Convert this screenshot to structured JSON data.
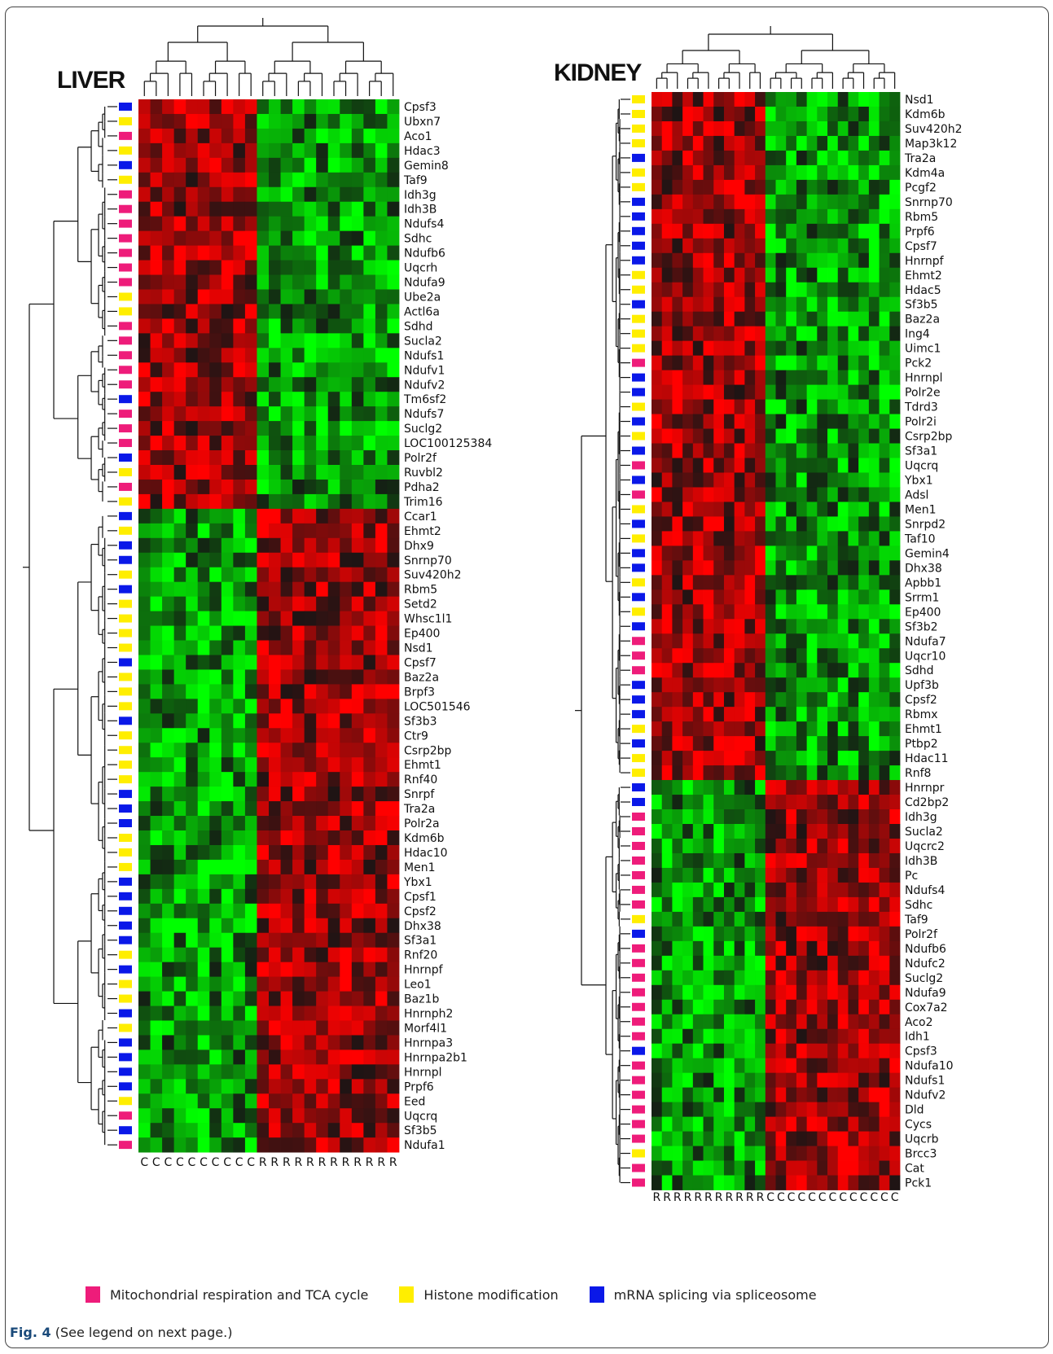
{
  "figure": {
    "label": "Fig. 4",
    "caption": "(See legend on next page.)"
  },
  "colors": {
    "mito": "#ee1c7a",
    "histone": "#ffee00",
    "splice": "#0a18e8",
    "high": "#ff2020",
    "low": "#20ff20",
    "mid": "#000000"
  },
  "legend": [
    {
      "key": "mito",
      "label": "Mitochondrial respiration and TCA cycle"
    },
    {
      "key": "histone",
      "label": "Histone modification"
    },
    {
      "key": "splice",
      "label": "mRNA splicing via spliceosome"
    }
  ],
  "panels": [
    {
      "id": "liver",
      "title": "LIVER",
      "columns": [
        "C",
        "C",
        "C",
        "C",
        "C",
        "C",
        "C",
        "C",
        "C",
        "C",
        "R",
        "R",
        "R",
        "R",
        "R",
        "R",
        "R",
        "R",
        "R",
        "R",
        "R",
        "R"
      ],
      "cluster_split": 28,
      "genes": [
        {
          "name": "Cpsf3",
          "cat": "splice"
        },
        {
          "name": "Ubxn7",
          "cat": "histone"
        },
        {
          "name": "Aco1",
          "cat": "mito"
        },
        {
          "name": "Hdac3",
          "cat": "histone"
        },
        {
          "name": "Gemin8",
          "cat": "splice"
        },
        {
          "name": "Taf9",
          "cat": "histone"
        },
        {
          "name": "Idh3g",
          "cat": "mito"
        },
        {
          "name": "Idh3B",
          "cat": "mito"
        },
        {
          "name": "Ndufs4",
          "cat": "mito"
        },
        {
          "name": "Sdhc",
          "cat": "mito"
        },
        {
          "name": "Ndufb6",
          "cat": "mito"
        },
        {
          "name": "Uqcrh",
          "cat": "mito"
        },
        {
          "name": "Ndufa9",
          "cat": "mito"
        },
        {
          "name": "Ube2a",
          "cat": "histone"
        },
        {
          "name": "Actl6a",
          "cat": "histone"
        },
        {
          "name": "Sdhd",
          "cat": "mito"
        },
        {
          "name": "Sucla2",
          "cat": "mito"
        },
        {
          "name": "Ndufs1",
          "cat": "mito"
        },
        {
          "name": "Ndufv1",
          "cat": "mito"
        },
        {
          "name": "Ndufv2",
          "cat": "mito"
        },
        {
          "name": "Tm6sf2",
          "cat": "splice"
        },
        {
          "name": "Ndufs7",
          "cat": "mito"
        },
        {
          "name": "Suclg2",
          "cat": "mito"
        },
        {
          "name": "LOC100125384",
          "cat": "mito"
        },
        {
          "name": "Polr2f",
          "cat": "splice"
        },
        {
          "name": "Ruvbl2",
          "cat": "histone"
        },
        {
          "name": "Pdha2",
          "cat": "mito"
        },
        {
          "name": "Trim16",
          "cat": "histone"
        },
        {
          "name": "Ccar1",
          "cat": "splice"
        },
        {
          "name": "Ehmt2",
          "cat": "histone"
        },
        {
          "name": "Dhx9",
          "cat": "splice"
        },
        {
          "name": "Snrnp70",
          "cat": "splice"
        },
        {
          "name": "Suv420h2",
          "cat": "histone"
        },
        {
          "name": "Rbm5",
          "cat": "splice"
        },
        {
          "name": "Setd2",
          "cat": "histone"
        },
        {
          "name": "Whsc1l1",
          "cat": "histone"
        },
        {
          "name": "Ep400",
          "cat": "histone"
        },
        {
          "name": "Nsd1",
          "cat": "histone"
        },
        {
          "name": "Cpsf7",
          "cat": "splice"
        },
        {
          "name": "Baz2a",
          "cat": "histone"
        },
        {
          "name": "Brpf3",
          "cat": "histone"
        },
        {
          "name": "LOC501546",
          "cat": "histone"
        },
        {
          "name": "Sf3b3",
          "cat": "splice"
        },
        {
          "name": "Ctr9",
          "cat": "histone"
        },
        {
          "name": "Csrp2bp",
          "cat": "histone"
        },
        {
          "name": "Ehmt1",
          "cat": "histone"
        },
        {
          "name": "Rnf40",
          "cat": "histone"
        },
        {
          "name": "Snrpf",
          "cat": "splice"
        },
        {
          "name": "Tra2a",
          "cat": "splice"
        },
        {
          "name": "Polr2a",
          "cat": "splice"
        },
        {
          "name": "Kdm6b",
          "cat": "histone"
        },
        {
          "name": "Hdac10",
          "cat": "histone"
        },
        {
          "name": "Men1",
          "cat": "histone"
        },
        {
          "name": "Ybx1",
          "cat": "splice"
        },
        {
          "name": "Cpsf1",
          "cat": "splice"
        },
        {
          "name": "Cpsf2",
          "cat": "splice"
        },
        {
          "name": "Dhx38",
          "cat": "splice"
        },
        {
          "name": "Sf3a1",
          "cat": "splice"
        },
        {
          "name": "Rnf20",
          "cat": "histone"
        },
        {
          "name": "Hnrnpf",
          "cat": "splice"
        },
        {
          "name": "Leo1",
          "cat": "histone"
        },
        {
          "name": "Baz1b",
          "cat": "histone"
        },
        {
          "name": "Hnrnph2",
          "cat": "splice"
        },
        {
          "name": "Morf4l1",
          "cat": "histone"
        },
        {
          "name": "Hnrnpa3",
          "cat": "splice"
        },
        {
          "name": "Hnrnpa2b1",
          "cat": "splice"
        },
        {
          "name": "Hnrnpl",
          "cat": "splice"
        },
        {
          "name": "Prpf6",
          "cat": "splice"
        },
        {
          "name": "Eed",
          "cat": "histone"
        },
        {
          "name": "Uqcrq",
          "cat": "mito"
        },
        {
          "name": "Sf3b5",
          "cat": "splice"
        },
        {
          "name": "Ndufa1",
          "cat": "mito"
        }
      ]
    },
    {
      "id": "kidney",
      "title": "KIDNEY",
      "columns": [
        "R",
        "R",
        "R",
        "R",
        "R",
        "R",
        "R",
        "R",
        "R",
        "R",
        "R",
        "C",
        "C",
        "C",
        "C",
        "C",
        "C",
        "C",
        "C",
        "C",
        "C",
        "C",
        "C",
        "C"
      ],
      "cluster_split": 47,
      "genes": [
        {
          "name": "Nsd1",
          "cat": "histone"
        },
        {
          "name": "Kdm6b",
          "cat": "histone"
        },
        {
          "name": "Suv420h2",
          "cat": "histone"
        },
        {
          "name": "Map3k12",
          "cat": "histone"
        },
        {
          "name": "Tra2a",
          "cat": "splice"
        },
        {
          "name": "Kdm4a",
          "cat": "histone"
        },
        {
          "name": "Pcgf2",
          "cat": "histone"
        },
        {
          "name": "Snrnp70",
          "cat": "splice"
        },
        {
          "name": "Rbm5",
          "cat": "splice"
        },
        {
          "name": "Prpf6",
          "cat": "splice"
        },
        {
          "name": "Cpsf7",
          "cat": "splice"
        },
        {
          "name": "Hnrnpf",
          "cat": "splice"
        },
        {
          "name": "Ehmt2",
          "cat": "histone"
        },
        {
          "name": "Hdac5",
          "cat": "histone"
        },
        {
          "name": "Sf3b5",
          "cat": "splice"
        },
        {
          "name": "Baz2a",
          "cat": "histone"
        },
        {
          "name": "Ing4",
          "cat": "histone"
        },
        {
          "name": "Uimc1",
          "cat": "histone"
        },
        {
          "name": "Pck2",
          "cat": "mito"
        },
        {
          "name": "Hnrnpl",
          "cat": "splice"
        },
        {
          "name": "Polr2e",
          "cat": "splice"
        },
        {
          "name": "Tdrd3",
          "cat": "histone"
        },
        {
          "name": "Polr2i",
          "cat": "splice"
        },
        {
          "name": "Csrp2bp",
          "cat": "histone"
        },
        {
          "name": "Sf3a1",
          "cat": "splice"
        },
        {
          "name": "Uqcrq",
          "cat": "mito"
        },
        {
          "name": "Ybx1",
          "cat": "splice"
        },
        {
          "name": "Adsl",
          "cat": "mito"
        },
        {
          "name": "Men1",
          "cat": "histone"
        },
        {
          "name": "Snrpd2",
          "cat": "splice"
        },
        {
          "name": "Taf10",
          "cat": "histone"
        },
        {
          "name": "Gemin4",
          "cat": "splice"
        },
        {
          "name": "Dhx38",
          "cat": "splice"
        },
        {
          "name": "Apbb1",
          "cat": "histone"
        },
        {
          "name": "Srrm1",
          "cat": "splice"
        },
        {
          "name": "Ep400",
          "cat": "histone"
        },
        {
          "name": "Sf3b2",
          "cat": "splice"
        },
        {
          "name": "Ndufa7",
          "cat": "mito"
        },
        {
          "name": "Uqcr10",
          "cat": "mito"
        },
        {
          "name": "Sdhd",
          "cat": "mito"
        },
        {
          "name": "Upf3b",
          "cat": "splice"
        },
        {
          "name": "Cpsf2",
          "cat": "splice"
        },
        {
          "name": "Rbmx",
          "cat": "splice"
        },
        {
          "name": "Ehmt1",
          "cat": "histone"
        },
        {
          "name": "Ptbp2",
          "cat": "splice"
        },
        {
          "name": "Hdac11",
          "cat": "histone"
        },
        {
          "name": "Rnf8",
          "cat": "histone"
        },
        {
          "name": "Hnrnpr",
          "cat": "splice"
        },
        {
          "name": "Cd2bp2",
          "cat": "splice"
        },
        {
          "name": "Idh3g",
          "cat": "mito"
        },
        {
          "name": "Sucla2",
          "cat": "mito"
        },
        {
          "name": "Uqcrc2",
          "cat": "mito"
        },
        {
          "name": "Idh3B",
          "cat": "mito"
        },
        {
          "name": "Pc",
          "cat": "mito"
        },
        {
          "name": "Ndufs4",
          "cat": "mito"
        },
        {
          "name": "Sdhc",
          "cat": "mito"
        },
        {
          "name": "Taf9",
          "cat": "histone"
        },
        {
          "name": "Polr2f",
          "cat": "splice"
        },
        {
          "name": "Ndufb6",
          "cat": "mito"
        },
        {
          "name": "Ndufc2",
          "cat": "mito"
        },
        {
          "name": "Suclg2",
          "cat": "mito"
        },
        {
          "name": "Ndufa9",
          "cat": "mito"
        },
        {
          "name": "Cox7a2",
          "cat": "mito"
        },
        {
          "name": "Aco2",
          "cat": "mito"
        },
        {
          "name": "Idh1",
          "cat": "mito"
        },
        {
          "name": "Cpsf3",
          "cat": "splice"
        },
        {
          "name": "Ndufa10",
          "cat": "mito"
        },
        {
          "name": "Ndufs1",
          "cat": "mito"
        },
        {
          "name": "Ndufv2",
          "cat": "mito"
        },
        {
          "name": "Dld",
          "cat": "mito"
        },
        {
          "name": "Cycs",
          "cat": "mito"
        },
        {
          "name": "Uqcrb",
          "cat": "mito"
        },
        {
          "name": "Brcc3",
          "cat": "histone"
        },
        {
          "name": "Cat",
          "cat": "mito"
        },
        {
          "name": "Pck1",
          "cat": "mito"
        }
      ]
    }
  ]
}
